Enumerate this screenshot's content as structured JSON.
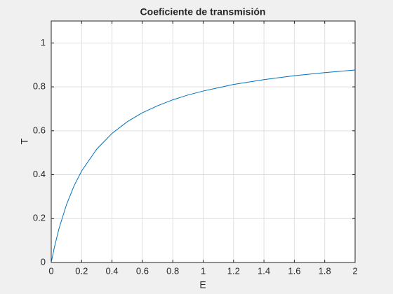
{
  "chart_data": {
    "type": "line",
    "title": "Coeficiente de transmisión",
    "x_label": "E",
    "y_label": "T",
    "x": [
      0,
      0.02,
      0.05,
      0.1,
      0.15,
      0.2,
      0.3,
      0.4,
      0.5,
      0.6,
      0.7,
      0.8,
      0.9,
      1.0,
      1.2,
      1.4,
      1.6,
      1.8,
      2.0
    ],
    "values": [
      0,
      0.067,
      0.152,
      0.263,
      0.349,
      0.417,
      0.517,
      0.588,
      0.641,
      0.682,
      0.714,
      0.741,
      0.763,
      0.781,
      0.811,
      0.833,
      0.851,
      0.865,
      0.877
    ],
    "color": "#0072bd",
    "xlim": [
      0,
      2
    ],
    "xticks": [
      0,
      0.2,
      0.4,
      0.6,
      0.8,
      1,
      1.2,
      1.4,
      1.6,
      1.8,
      2
    ],
    "ylim": [
      0,
      1.1
    ],
    "yticks": [
      0,
      0.2,
      0.4,
      0.6,
      0.8,
      1
    ],
    "grid": true
  }
}
